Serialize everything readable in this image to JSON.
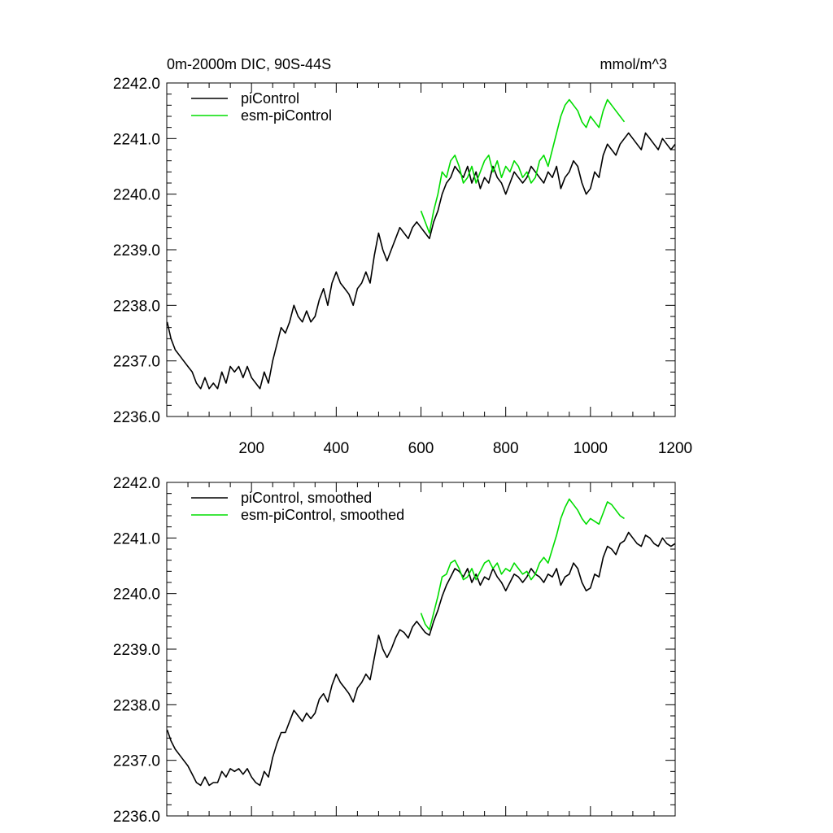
{
  "figure": {
    "title_left": "0m-2000m DIC, 90S-44S",
    "title_right": "mmol/m^3"
  },
  "chart_data": [
    {
      "type": "line",
      "title": "0m-2000m DIC, 90S-44S",
      "units": "mmol/m^3",
      "xlim": [
        0,
        1200
      ],
      "ylim": [
        2236.0,
        2242.0
      ],
      "xticks": [
        200,
        400,
        600,
        800,
        1000,
        1200
      ],
      "xtick_labels": [
        "200",
        "400",
        "600",
        "800",
        "1000",
        "1200"
      ],
      "yticks": [
        2236.0,
        2237.0,
        2238.0,
        2239.0,
        2240.0,
        2241.0,
        2242.0
      ],
      "ytick_labels": [
        "2236.0",
        "2237.0",
        "2238.0",
        "2239.0",
        "2240.0",
        "2241.0",
        "2242.0"
      ],
      "legend_position": "top-left",
      "grid": false,
      "series": [
        {
          "name": "piControl",
          "color": "#000000",
          "x": [
            1,
            10,
            20,
            30,
            40,
            50,
            60,
            70,
            80,
            90,
            100,
            110,
            120,
            130,
            140,
            150,
            160,
            170,
            180,
            190,
            200,
            210,
            220,
            230,
            240,
            250,
            260,
            270,
            280,
            290,
            300,
            310,
            320,
            330,
            340,
            350,
            360,
            370,
            380,
            390,
            400,
            410,
            420,
            430,
            440,
            450,
            460,
            470,
            480,
            490,
            500,
            510,
            520,
            530,
            540,
            550,
            560,
            570,
            580,
            590,
            600,
            610,
            620,
            630,
            640,
            650,
            660,
            670,
            680,
            690,
            700,
            710,
            720,
            730,
            740,
            750,
            760,
            770,
            780,
            790,
            800,
            810,
            820,
            830,
            840,
            850,
            860,
            870,
            880,
            890,
            900,
            910,
            920,
            930,
            940,
            950,
            960,
            970,
            980,
            990,
            1000,
            1010,
            1020,
            1030,
            1040,
            1050,
            1060,
            1070,
            1080,
            1090,
            1100,
            1110,
            1120,
            1130,
            1140,
            1150,
            1160,
            1170,
            1180,
            1190,
            1200
          ],
          "y": [
            2237.7,
            2237.4,
            2237.2,
            2237.1,
            2237.0,
            2236.9,
            2236.8,
            2236.6,
            2236.5,
            2236.7,
            2236.5,
            2236.6,
            2236.5,
            2236.8,
            2236.6,
            2236.9,
            2236.8,
            2236.9,
            2236.7,
            2236.9,
            2236.7,
            2236.6,
            2236.5,
            2236.8,
            2236.6,
            2237.0,
            2237.3,
            2237.6,
            2237.5,
            2237.7,
            2238.0,
            2237.8,
            2237.7,
            2237.9,
            2237.7,
            2237.8,
            2238.1,
            2238.3,
            2238.0,
            2238.4,
            2238.6,
            2238.4,
            2238.3,
            2238.2,
            2238.0,
            2238.3,
            2238.4,
            2238.6,
            2238.4,
            2238.9,
            2239.3,
            2239.0,
            2238.8,
            2239.0,
            2239.2,
            2239.4,
            2239.3,
            2239.2,
            2239.4,
            2239.5,
            2239.4,
            2239.3,
            2239.2,
            2239.5,
            2239.7,
            2240.0,
            2240.2,
            2240.3,
            2240.5,
            2240.4,
            2240.3,
            2240.5,
            2240.2,
            2240.4,
            2240.1,
            2240.3,
            2240.2,
            2240.5,
            2240.3,
            2240.2,
            2240.0,
            2240.2,
            2240.4,
            2240.3,
            2240.2,
            2240.3,
            2240.5,
            2240.4,
            2240.3,
            2240.2,
            2240.4,
            2240.3,
            2240.5,
            2240.1,
            2240.3,
            2240.4,
            2240.6,
            2240.5,
            2240.2,
            2240.0,
            2240.1,
            2240.4,
            2240.3,
            2240.7,
            2240.9,
            2240.8,
            2240.7,
            2240.9,
            2241.0,
            2241.1,
            2241.0,
            2240.9,
            2240.8,
            2241.1,
            2241.0,
            2240.9,
            2240.8,
            2241.0,
            2240.9,
            2240.8,
            2240.9
          ]
        },
        {
          "name": "esm-piControl",
          "color": "#00dd00",
          "x": [
            600,
            610,
            620,
            630,
            640,
            650,
            660,
            670,
            680,
            690,
            700,
            710,
            720,
            730,
            740,
            750,
            760,
            770,
            780,
            790,
            800,
            810,
            820,
            830,
            840,
            850,
            860,
            870,
            880,
            890,
            900,
            910,
            920,
            930,
            940,
            950,
            960,
            970,
            980,
            990,
            1000,
            1010,
            1020,
            1030,
            1040,
            1050,
            1060,
            1070,
            1080
          ],
          "y": [
            2239.7,
            2239.5,
            2239.3,
            2239.7,
            2240.0,
            2240.4,
            2240.3,
            2240.6,
            2240.7,
            2240.5,
            2240.2,
            2240.3,
            2240.5,
            2240.2,
            2240.4,
            2240.6,
            2240.7,
            2240.4,
            2240.6,
            2240.3,
            2240.5,
            2240.4,
            2240.6,
            2240.5,
            2240.3,
            2240.4,
            2240.2,
            2240.3,
            2240.6,
            2240.7,
            2240.5,
            2240.8,
            2241.1,
            2241.4,
            2241.6,
            2241.7,
            2241.6,
            2241.5,
            2241.3,
            2241.2,
            2241.4,
            2241.3,
            2241.2,
            2241.5,
            2241.7,
            2241.6,
            2241.5,
            2241.4,
            2241.3
          ]
        }
      ]
    },
    {
      "type": "line",
      "title": "",
      "xlim": [
        0,
        1200
      ],
      "ylim": [
        2236.0,
        2242.0
      ],
      "xticks": [
        200,
        400,
        600,
        800,
        1000,
        1200
      ],
      "yticks": [
        2236.0,
        2237.0,
        2238.0,
        2239.0,
        2240.0,
        2241.0,
        2242.0
      ],
      "ytick_labels": [
        "2236.0",
        "2237.0",
        "2238.0",
        "2239.0",
        "2240.0",
        "2241.0",
        "2242.0"
      ],
      "legend_position": "top-left",
      "grid": false,
      "series": [
        {
          "name": "piControl, smoothed",
          "color": "#000000",
          "x": [
            1,
            10,
            20,
            30,
            40,
            50,
            60,
            70,
            80,
            90,
            100,
            110,
            120,
            130,
            140,
            150,
            160,
            170,
            180,
            190,
            200,
            210,
            220,
            230,
            240,
            250,
            260,
            270,
            280,
            290,
            300,
            310,
            320,
            330,
            340,
            350,
            360,
            370,
            380,
            390,
            400,
            410,
            420,
            430,
            440,
            450,
            460,
            470,
            480,
            490,
            500,
            510,
            520,
            530,
            540,
            550,
            560,
            570,
            580,
            590,
            600,
            610,
            620,
            630,
            640,
            650,
            660,
            670,
            680,
            690,
            700,
            710,
            720,
            730,
            740,
            750,
            760,
            770,
            780,
            790,
            800,
            810,
            820,
            830,
            840,
            850,
            860,
            870,
            880,
            890,
            900,
            910,
            920,
            930,
            940,
            950,
            960,
            970,
            980,
            990,
            1000,
            1010,
            1020,
            1030,
            1040,
            1050,
            1060,
            1070,
            1080,
            1090,
            1100,
            1110,
            1120,
            1130,
            1140,
            1150,
            1160,
            1170,
            1180,
            1190,
            1200
          ],
          "y": [
            2237.55,
            2237.35,
            2237.2,
            2237.1,
            2237.0,
            2236.9,
            2236.75,
            2236.6,
            2236.55,
            2236.7,
            2236.55,
            2236.6,
            2236.6,
            2236.8,
            2236.7,
            2236.85,
            2236.8,
            2236.85,
            2236.75,
            2236.85,
            2236.7,
            2236.6,
            2236.55,
            2236.8,
            2236.7,
            2237.05,
            2237.3,
            2237.5,
            2237.5,
            2237.7,
            2237.9,
            2237.8,
            2237.7,
            2237.85,
            2237.75,
            2237.85,
            2238.1,
            2238.2,
            2238.05,
            2238.35,
            2238.55,
            2238.4,
            2238.3,
            2238.2,
            2238.05,
            2238.3,
            2238.4,
            2238.55,
            2238.45,
            2238.85,
            2239.25,
            2239.0,
            2238.85,
            2239.0,
            2239.2,
            2239.35,
            2239.3,
            2239.2,
            2239.4,
            2239.5,
            2239.4,
            2239.3,
            2239.25,
            2239.5,
            2239.7,
            2239.95,
            2240.15,
            2240.3,
            2240.45,
            2240.4,
            2240.3,
            2240.45,
            2240.2,
            2240.35,
            2240.15,
            2240.3,
            2240.25,
            2240.45,
            2240.3,
            2240.2,
            2240.05,
            2240.2,
            2240.35,
            2240.3,
            2240.2,
            2240.3,
            2240.45,
            2240.35,
            2240.3,
            2240.2,
            2240.35,
            2240.3,
            2240.45,
            2240.15,
            2240.3,
            2240.35,
            2240.55,
            2240.45,
            2240.2,
            2240.05,
            2240.1,
            2240.35,
            2240.3,
            2240.65,
            2240.85,
            2240.8,
            2240.7,
            2240.9,
            2240.95,
            2241.1,
            2241.0,
            2240.9,
            2240.85,
            2241.05,
            2241.0,
            2240.9,
            2240.85,
            2241.0,
            2240.9,
            2240.85,
            2240.9
          ]
        },
        {
          "name": "esm-piControl, smoothed",
          "color": "#00dd00",
          "x": [
            600,
            610,
            620,
            630,
            640,
            650,
            660,
            670,
            680,
            690,
            700,
            710,
            720,
            730,
            740,
            750,
            760,
            770,
            780,
            790,
            800,
            810,
            820,
            830,
            840,
            850,
            860,
            870,
            880,
            890,
            900,
            910,
            920,
            930,
            940,
            950,
            960,
            970,
            980,
            990,
            1000,
            1010,
            1020,
            1030,
            1040,
            1050,
            1060,
            1070,
            1080
          ],
          "y": [
            2239.65,
            2239.45,
            2239.35,
            2239.65,
            2239.95,
            2240.3,
            2240.35,
            2240.55,
            2240.6,
            2240.45,
            2240.25,
            2240.3,
            2240.45,
            2240.25,
            2240.4,
            2240.55,
            2240.6,
            2240.45,
            2240.55,
            2240.35,
            2240.45,
            2240.4,
            2240.55,
            2240.45,
            2240.35,
            2240.4,
            2240.25,
            2240.35,
            2240.55,
            2240.65,
            2240.55,
            2240.8,
            2241.05,
            2241.35,
            2241.55,
            2241.7,
            2241.6,
            2241.5,
            2241.35,
            2241.25,
            2241.35,
            2241.3,
            2241.25,
            2241.45,
            2241.65,
            2241.6,
            2241.5,
            2241.4,
            2241.35
          ]
        }
      ]
    }
  ]
}
